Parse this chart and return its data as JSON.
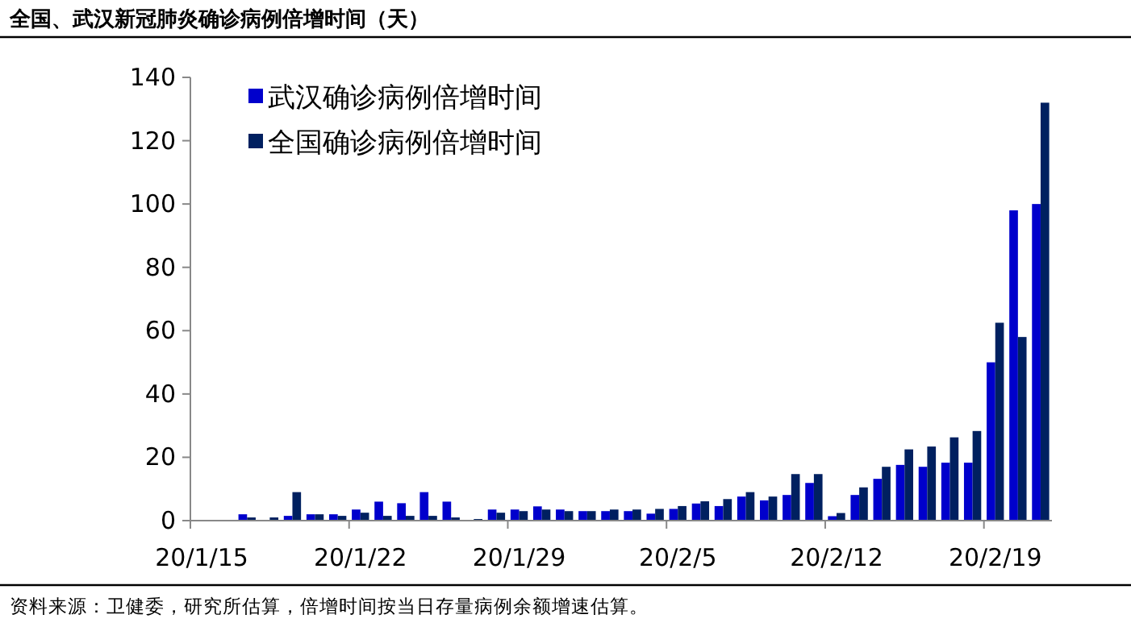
{
  "chart_data": {
    "type": "bar",
    "title": "全国、武汉新冠肺炎确诊病例倍增时间（天）",
    "categories": [
      "20/1/15",
      null,
      null,
      null,
      null,
      null,
      null,
      "20/1/22",
      null,
      null,
      null,
      null,
      null,
      null,
      "20/1/29",
      null,
      null,
      null,
      null,
      null,
      null,
      "20/2/5",
      null,
      null,
      null,
      null,
      null,
      null,
      "20/2/12",
      null,
      null,
      null,
      null,
      null,
      null,
      "20/2/19",
      null,
      null
    ],
    "series": [
      {
        "name": "武汉确诊病例倍增时间",
        "color": "#0000cc",
        "values": [
          null,
          null,
          2,
          null,
          1.5,
          2,
          2,
          3.5,
          6,
          5.5,
          9,
          6,
          null,
          3.5,
          3.5,
          4.5,
          3.5,
          3,
          3,
          3,
          2.2,
          3.7,
          5.4,
          4.6,
          7.6,
          6.4,
          8.1,
          11.9,
          1.4,
          8.1,
          13.2,
          17.6,
          17,
          18.3,
          18.3,
          50,
          98,
          100
        ]
      },
      {
        "name": "全国确诊病例倍增时间",
        "color": "#002060",
        "values": [
          null,
          null,
          1,
          1,
          9,
          2,
          1.5,
          2.5,
          1.5,
          1.5,
          1.5,
          1,
          0.5,
          2.5,
          3,
          3.5,
          3,
          3,
          3.5,
          3.5,
          3.7,
          4.6,
          6.1,
          6.8,
          9,
          7.6,
          14.7,
          14.7,
          2.4,
          10.5,
          17,
          22.5,
          23.4,
          26.3,
          28.3,
          62.5,
          58,
          132
        ]
      }
    ],
    "ylim": [
      0,
      140
    ],
    "yticks": [
      0,
      20,
      40,
      60,
      80,
      100,
      120,
      140
    ],
    "grid": false,
    "legend": "top left",
    "annotations": [
      "资料来源：卫健委，研究所估算，倍增时间按当日存量病例余额增速估算。"
    ]
  }
}
